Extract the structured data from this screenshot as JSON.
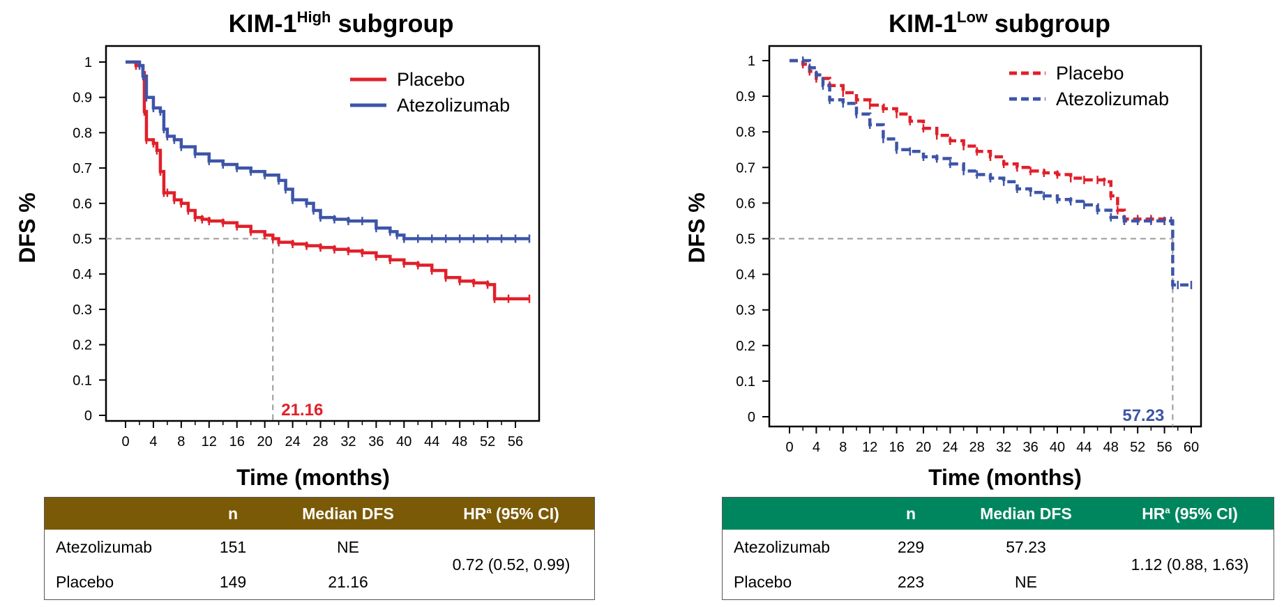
{
  "colors": {
    "placebo": "#e0202a",
    "atezolizumab": "#3d55a8",
    "ref_line": "#999999",
    "tbl_left": "#7b5a07",
    "tbl_right": "#00865e"
  },
  "chart_data": [
    {
      "type": "line",
      "title": {
        "main": "KIM-1",
        "sup": "High",
        "rest": " subgroup"
      },
      "xlabel": "Time (months)",
      "ylabel": "DFS %",
      "xlim": [
        0,
        58
      ],
      "ylim": [
        0,
        1
      ],
      "xticks": [
        "0",
        "4",
        "8",
        "12",
        "16",
        "20",
        "24",
        "28",
        "32",
        "36",
        "40",
        "44",
        "48",
        "52",
        "56"
      ],
      "yticks": [
        "0",
        "0.1",
        "0.2",
        "0.3",
        "0.4",
        "0.5",
        "0.6",
        "0.7",
        "0.8",
        "0.9",
        "1"
      ],
      "line_style": "solid",
      "legend_position": "top-right",
      "series": [
        {
          "name": "Placebo",
          "color": "#e0202a",
          "x": [
            0,
            1.5,
            2.5,
            2.7,
            3,
            4,
            4.5,
            5,
            5.5,
            6,
            7,
            8,
            9,
            10,
            11,
            12,
            14,
            16,
            18,
            20,
            21.16,
            22,
            24,
            26,
            28,
            30,
            32,
            34,
            36,
            38,
            40,
            42,
            44,
            46,
            48,
            50,
            52,
            53,
            55,
            58
          ],
          "y": [
            1,
            0.99,
            0.97,
            0.86,
            0.78,
            0.77,
            0.75,
            0.69,
            0.63,
            0.63,
            0.61,
            0.6,
            0.58,
            0.56,
            0.555,
            0.55,
            0.545,
            0.535,
            0.52,
            0.51,
            0.5,
            0.49,
            0.485,
            0.48,
            0.475,
            0.47,
            0.465,
            0.46,
            0.45,
            0.44,
            0.43,
            0.425,
            0.41,
            0.39,
            0.38,
            0.375,
            0.37,
            0.33,
            0.33,
            0.33
          ]
        },
        {
          "name": "Atezolizumab",
          "color": "#3d55a8",
          "x": [
            0,
            2,
            2.5,
            3,
            4,
            5,
            5.5,
            6,
            7,
            8,
            10,
            12,
            14,
            16,
            18,
            20,
            22,
            23,
            24,
            26,
            27,
            28,
            30,
            32,
            34,
            36,
            38,
            39,
            40,
            42,
            44,
            46,
            48,
            50,
            52,
            54,
            56,
            58
          ],
          "y": [
            1,
            0.99,
            0.96,
            0.9,
            0.87,
            0.86,
            0.81,
            0.79,
            0.78,
            0.76,
            0.74,
            0.72,
            0.71,
            0.7,
            0.69,
            0.68,
            0.665,
            0.64,
            0.61,
            0.6,
            0.58,
            0.56,
            0.555,
            0.55,
            0.55,
            0.53,
            0.52,
            0.51,
            0.5,
            0.5,
            0.5,
            0.5,
            0.5,
            0.5,
            0.5,
            0.5,
            0.5,
            0.5
          ]
        }
      ],
      "median": {
        "label": "21.16",
        "x": 21.16,
        "y": 0.5,
        "color": "#e0202a"
      }
    },
    {
      "type": "line",
      "title": {
        "main": "KIM-1",
        "sup": "Low",
        "rest": " subgroup"
      },
      "xlabel": "Time (months)",
      "ylabel": "DFS %",
      "xlim": [
        0,
        60
      ],
      "ylim": [
        0,
        1
      ],
      "xticks": [
        "0",
        "4",
        "8",
        "12",
        "16",
        "20",
        "24",
        "28",
        "32",
        "36",
        "40",
        "44",
        "48",
        "52",
        "56",
        "60"
      ],
      "yticks": [
        "0",
        "0.1",
        "0.2",
        "0.3",
        "0.4",
        "0.5",
        "0.6",
        "0.7",
        "0.8",
        "0.9",
        "1"
      ],
      "line_style": "dashed",
      "legend_position": "top-right",
      "series": [
        {
          "name": "Placebo",
          "color": "#e0202a",
          "x": [
            0,
            2,
            3,
            4,
            6,
            8,
            10,
            12,
            14,
            16,
            18,
            20,
            22,
            24,
            26,
            28,
            30,
            32,
            34,
            36,
            38,
            40,
            42,
            44,
            46,
            47,
            48,
            49,
            50,
            52,
            54,
            56
          ],
          "y": [
            1,
            0.99,
            0.97,
            0.95,
            0.93,
            0.91,
            0.89,
            0.875,
            0.865,
            0.85,
            0.83,
            0.81,
            0.79,
            0.775,
            0.76,
            0.745,
            0.73,
            0.71,
            0.7,
            0.69,
            0.685,
            0.68,
            0.67,
            0.665,
            0.665,
            0.66,
            0.62,
            0.58,
            0.555,
            0.555,
            0.555,
            0.55
          ]
        },
        {
          "name": "Atezolizumab",
          "color": "#3d55a8",
          "x": [
            0,
            2,
            3,
            4,
            5,
            6,
            8,
            10,
            12,
            14,
            16,
            18,
            20,
            22,
            24,
            26,
            28,
            30,
            32,
            34,
            36,
            38,
            40,
            42,
            44,
            46,
            48,
            50,
            52,
            54,
            56,
            57,
            57.23,
            58,
            60
          ],
          "y": [
            1,
            1,
            0.98,
            0.96,
            0.93,
            0.89,
            0.88,
            0.85,
            0.82,
            0.78,
            0.75,
            0.745,
            0.73,
            0.725,
            0.71,
            0.69,
            0.68,
            0.67,
            0.66,
            0.64,
            0.63,
            0.62,
            0.61,
            0.605,
            0.595,
            0.58,
            0.56,
            0.55,
            0.55,
            0.55,
            0.55,
            0.55,
            0.37,
            0.37,
            0.37
          ]
        }
      ],
      "median": {
        "label": "57.23",
        "x": 57.23,
        "y": 0.5,
        "color": "#3d55a8"
      }
    }
  ],
  "tables": [
    {
      "header": {
        "arm": "",
        "n": "n",
        "median": "Median DFS",
        "hr_main": "HR",
        "hr_sup": "a",
        "hr_rest": " (95% CI)"
      },
      "rows": [
        {
          "arm": "Atezolizumab",
          "n": "151",
          "median": "NE"
        },
        {
          "arm": "Placebo",
          "n": "149",
          "median": "21.16"
        }
      ],
      "hr_value": "0.72 (0.52, 0.99)"
    },
    {
      "header": {
        "arm": "",
        "n": "n",
        "median": "Median DFS",
        "hr_main": "HR",
        "hr_sup": "a",
        "hr_rest": " (95% CI)"
      },
      "rows": [
        {
          "arm": "Atezolizumab",
          "n": "229",
          "median": "57.23"
        },
        {
          "arm": "Placebo",
          "n": "223",
          "median": "NE"
        }
      ],
      "hr_value": "1.12 (0.88, 1.63)"
    }
  ]
}
